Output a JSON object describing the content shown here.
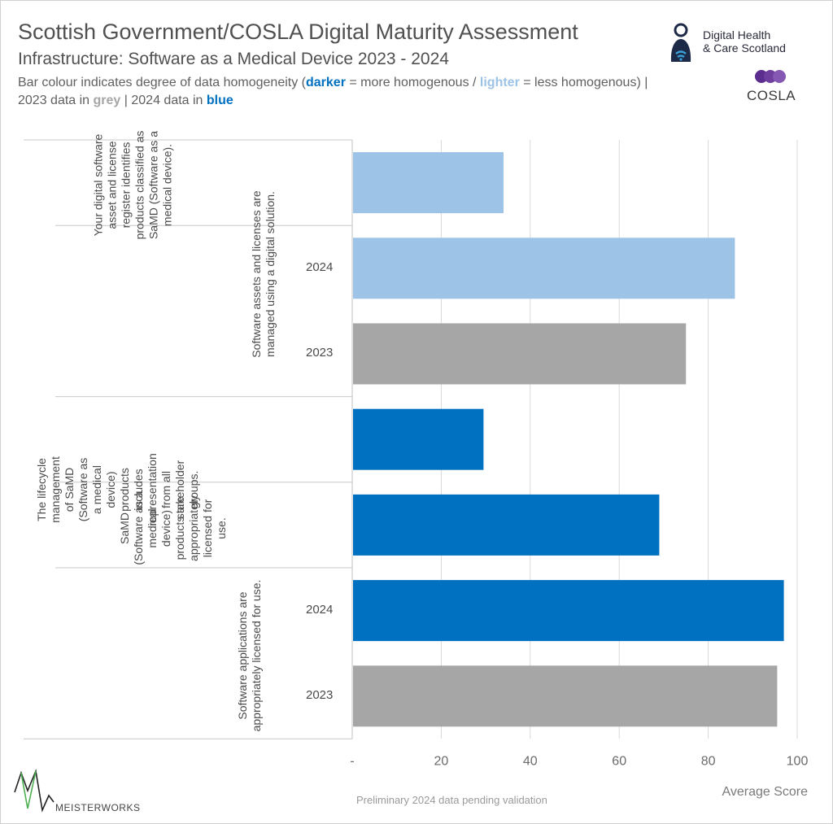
{
  "header": {
    "title": "Scottish Government/COSLA Digital Maturity Assessment",
    "subtitle": "Infrastructure: Software as a Medical Device 2023 - 2024",
    "desc_part1": "Bar colour indicates degree of data homogeneity (",
    "desc_darker": "darker",
    "desc_part2": " = more homogenous / ",
    "desc_lighter": "lighter",
    "desc_part3": " = less homogenous) | 2023 data in ",
    "desc_grey": "grey",
    "desc_part4": " | 2024 data in ",
    "desc_blue": "blue"
  },
  "logos": {
    "dhcs_line1": "Digital Health",
    "dhcs_line2": "& Care Scotland",
    "cosla": "COSLA",
    "meisterworks": "MEISTERWORKS",
    "dhcs_icon": "digital-health-care-scotland-logo",
    "cosla_icon": "cosla-logo",
    "meisterworks_icon": "meisterworks-logo"
  },
  "footer": {
    "note": "Preliminary 2024 data pending validation"
  },
  "colors": {
    "dark_blue": "#0070c0",
    "light_blue": "#9dc3e6",
    "grey": "#a6a6a6",
    "grid": "#d9d9d9"
  },
  "row_labels": {
    "q1": "Your digital software asset and license register identifies products classified as SaMD (Software as a medical device).",
    "q2": "Software assets and licenses are managed using a digital solution.",
    "q3": "The lifecycle management of SaMD (Software as a medical device) products includes representation from all stakeholder groups.",
    "q4": "SaMD (Software as a medical device) products are appropriately licensed for use.",
    "q5": "Software applications are appropriately licensed for use."
  },
  "chart_data": {
    "type": "bar",
    "orientation": "horizontal",
    "xlabel": "Average Score",
    "xlim": [
      0,
      100
    ],
    "xticks": [
      "-",
      "20",
      "40",
      "60",
      "80",
      "100"
    ],
    "grid": true,
    "bars": [
      {
        "question": "Your digital software asset and license register identifies products classified as SaMD (Software as a medical device).",
        "year": "",
        "value": 34,
        "shade": "light_blue"
      },
      {
        "question": "Software assets and licenses are managed using a digital solution.",
        "year": "2024",
        "value": 86,
        "shade": "light_blue"
      },
      {
        "question": "Software assets and licenses are managed using a digital solution.",
        "year": "2023",
        "value": 75,
        "shade": "grey"
      },
      {
        "question": "The lifecycle management of SaMD (Software as a medical device) products includes representation from all stakeholder groups.",
        "year": "",
        "value": 29.5,
        "shade": "dark_blue"
      },
      {
        "question": "SaMD (Software as a medical device) products are appropriately licensed for use.",
        "year": "",
        "value": 69,
        "shade": "dark_blue"
      },
      {
        "question": "Software applications are appropriately licensed for use.",
        "year": "2024",
        "value": 97,
        "shade": "dark_blue"
      },
      {
        "question": "Software applications are appropriately licensed for use.",
        "year": "2023",
        "value": 95.5,
        "shade": "grey"
      }
    ]
  }
}
